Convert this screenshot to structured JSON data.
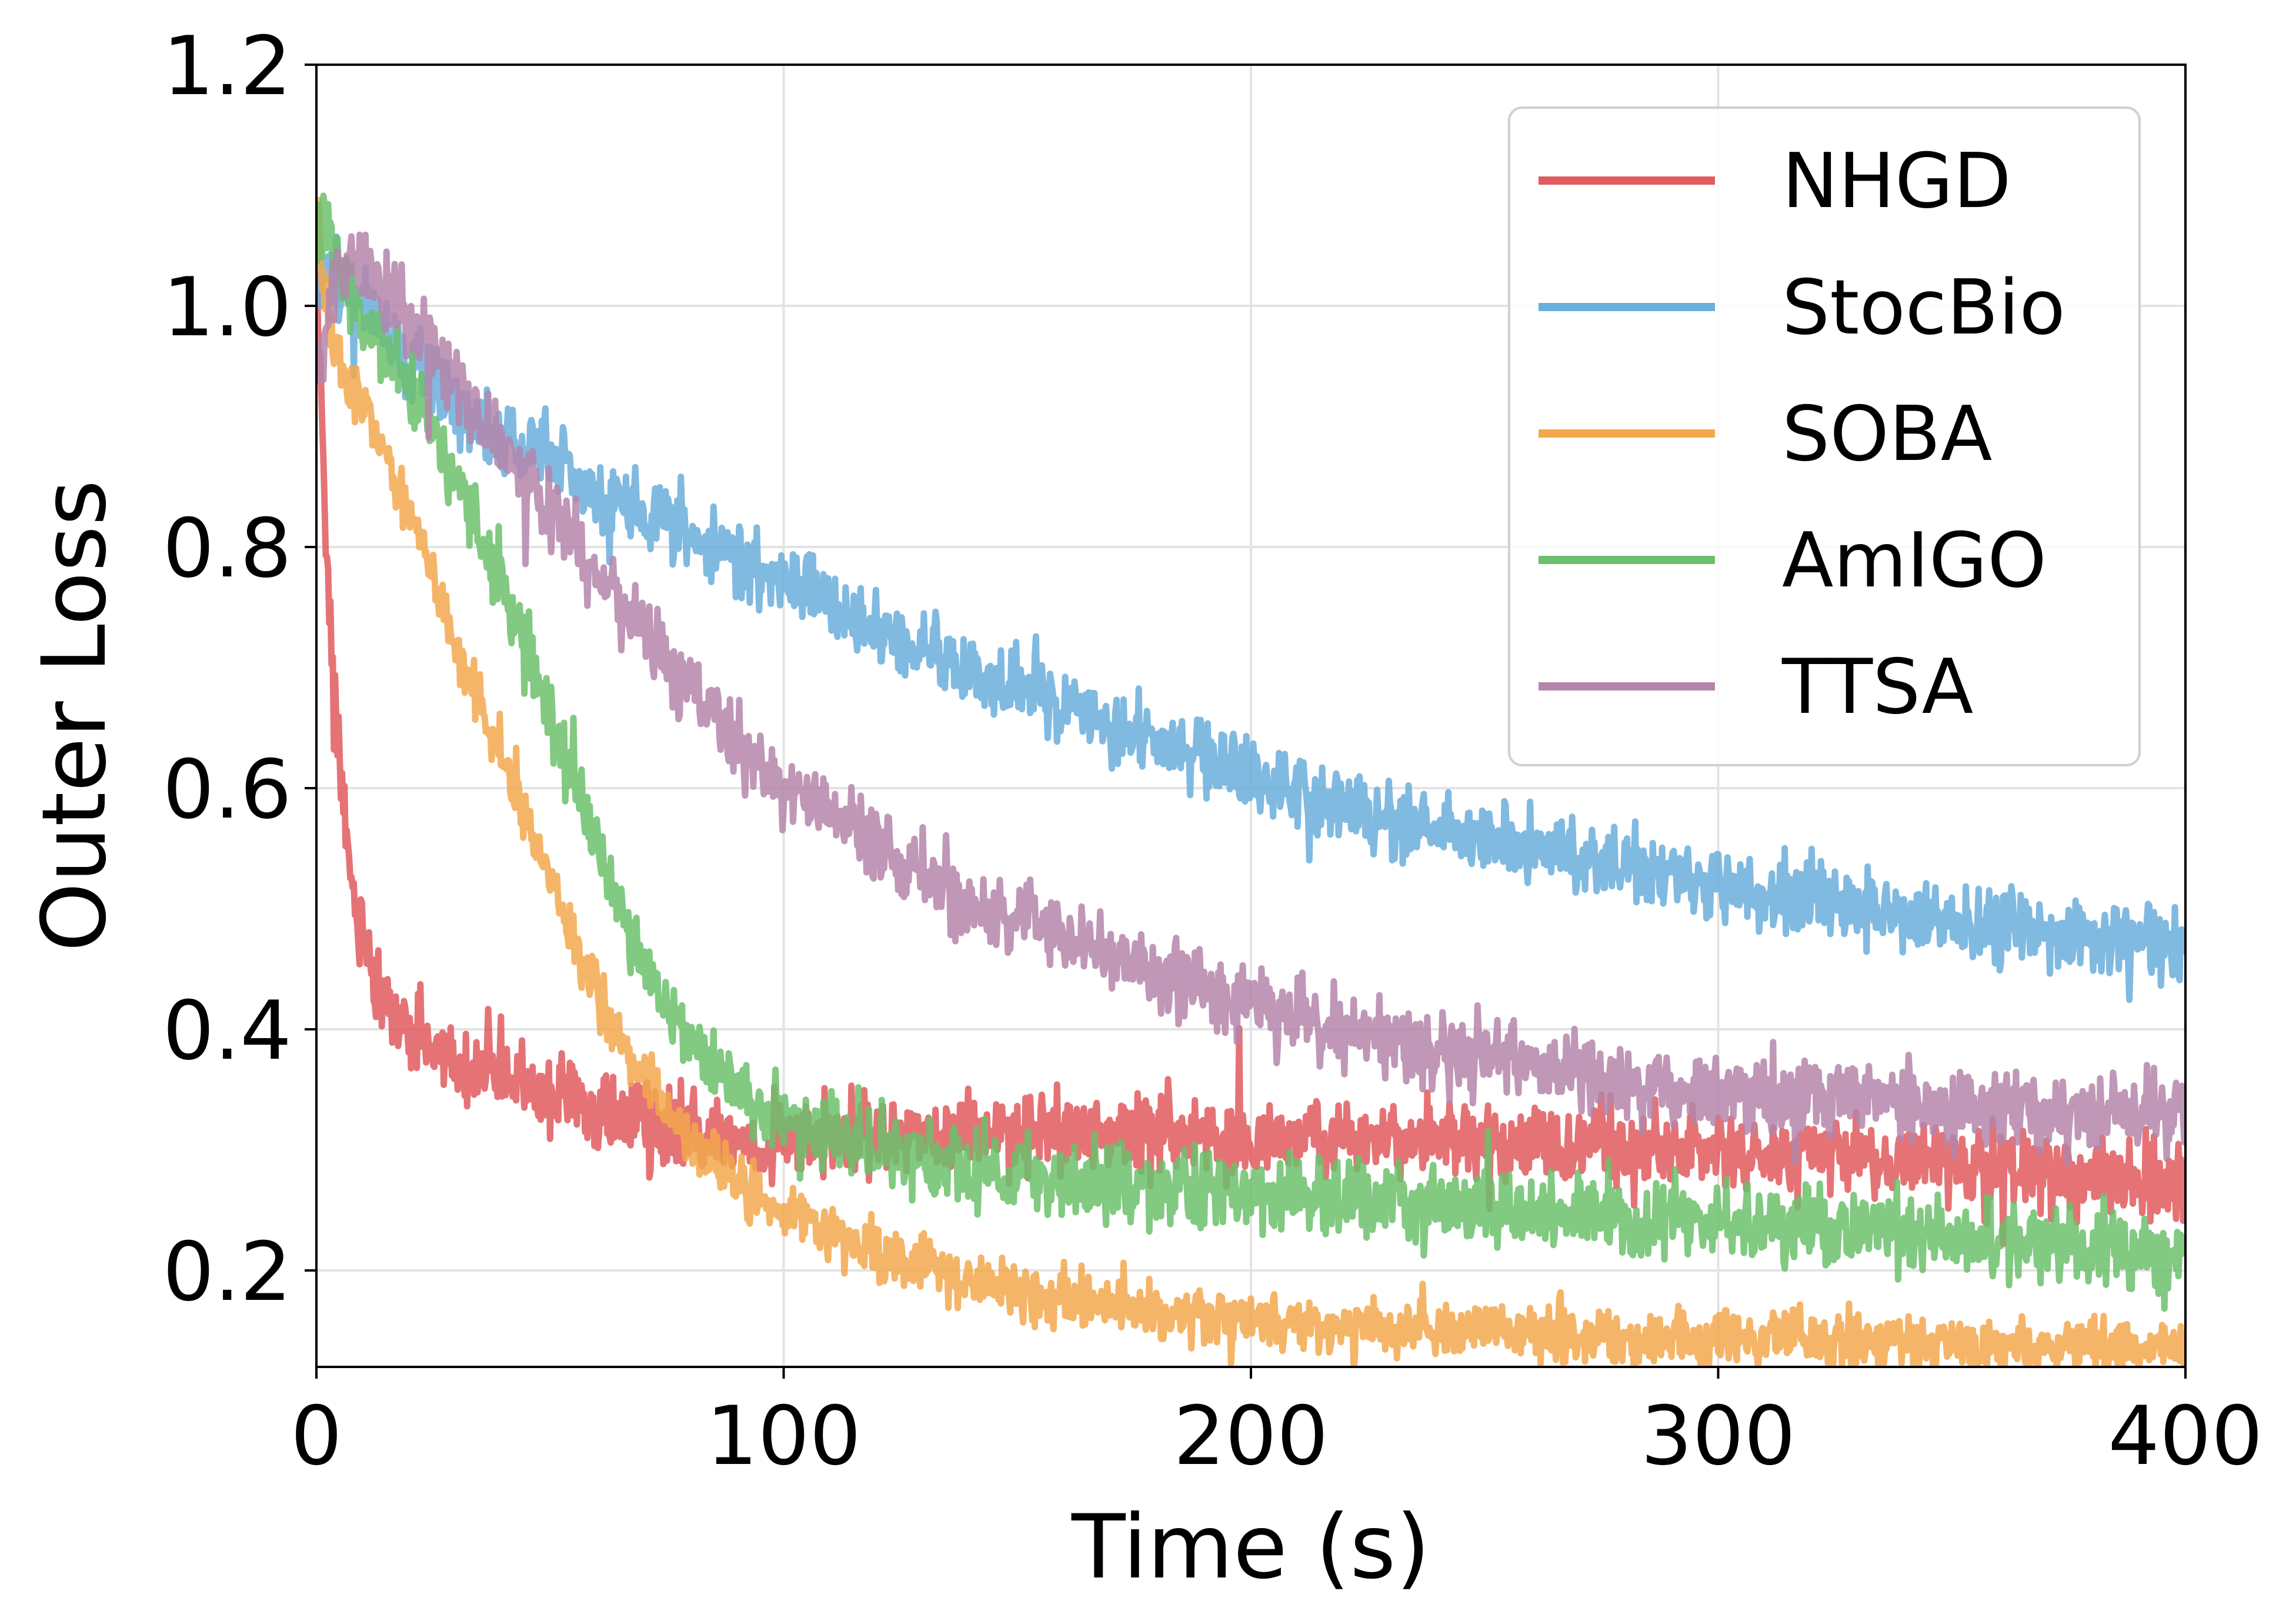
{
  "chart_data": {
    "type": "line",
    "title": "",
    "xlabel": "Time (s)",
    "ylabel": "Outer Loss",
    "xlim": [
      0,
      400
    ],
    "ylim": [
      0.12,
      1.2
    ],
    "xticks": [
      0,
      100,
      200,
      300,
      400
    ],
    "xtick_labels": [
      "0",
      "100",
      "200",
      "300",
      "400"
    ],
    "yticks": [
      0.2,
      0.4,
      0.6,
      0.8,
      1.0,
      1.2
    ],
    "ytick_labels": [
      "0.2",
      "0.4",
      "0.6",
      "0.8",
      "1.0",
      "1.2"
    ],
    "grid": true,
    "legend_position": "top-right",
    "series": [
      {
        "name": "NHGD",
        "color": "#e05a5e",
        "noise": 0.022,
        "x": [
          0,
          1,
          2,
          3,
          4,
          6,
          8,
          10,
          12,
          15,
          20,
          25,
          30,
          40,
          50,
          60,
          70,
          80,
          90,
          100,
          120,
          140,
          160,
          180,
          200,
          220,
          240,
          260,
          280,
          300,
          320,
          340,
          360,
          380,
          400
        ],
        "y": [
          1.02,
          0.92,
          0.82,
          0.73,
          0.66,
          0.57,
          0.51,
          0.47,
          0.44,
          0.42,
          0.4,
          0.385,
          0.375,
          0.36,
          0.35,
          0.335,
          0.32,
          0.31,
          0.305,
          0.31,
          0.31,
          0.315,
          0.315,
          0.315,
          0.31,
          0.31,
          0.305,
          0.305,
          0.3,
          0.3,
          0.295,
          0.29,
          0.285,
          0.28,
          0.27
        ]
      },
      {
        "name": "StocBio",
        "color": "#6aaedc",
        "noise": 0.022,
        "x": [
          0,
          2,
          5,
          10,
          20,
          30,
          40,
          50,
          60,
          80,
          100,
          120,
          140,
          160,
          180,
          200,
          220,
          240,
          260,
          280,
          300,
          320,
          340,
          360,
          380,
          400
        ],
        "y": [
          1.02,
          1.03,
          1.02,
          1.0,
          0.95,
          0.92,
          0.89,
          0.87,
          0.85,
          0.81,
          0.77,
          0.73,
          0.7,
          0.67,
          0.64,
          0.61,
          0.585,
          0.565,
          0.55,
          0.535,
          0.52,
          0.505,
          0.495,
          0.485,
          0.475,
          0.465
        ]
      },
      {
        "name": "SOBA",
        "color": "#f3a84e",
        "noise": 0.016,
        "x": [
          0,
          1,
          3,
          5,
          10,
          20,
          30,
          40,
          50,
          60,
          70,
          80,
          90,
          100,
          120,
          140,
          160,
          180,
          200,
          220,
          240,
          260,
          280,
          300,
          320,
          340,
          360,
          380,
          400
        ],
        "y": [
          1.1,
          1.05,
          0.98,
          0.95,
          0.92,
          0.83,
          0.72,
          0.62,
          0.52,
          0.43,
          0.36,
          0.31,
          0.275,
          0.25,
          0.215,
          0.19,
          0.175,
          0.165,
          0.16,
          0.155,
          0.15,
          0.148,
          0.145,
          0.143,
          0.141,
          0.139,
          0.137,
          0.136,
          0.135
        ]
      },
      {
        "name": "AmIGO",
        "color": "#6cbf6c",
        "noise": 0.022,
        "x": [
          0,
          2,
          5,
          10,
          20,
          30,
          40,
          50,
          60,
          70,
          80,
          90,
          100,
          120,
          140,
          160,
          180,
          200,
          220,
          240,
          260,
          280,
          300,
          320,
          340,
          360,
          380,
          400
        ],
        "y": [
          1.05,
          1.07,
          1.03,
          0.99,
          0.93,
          0.86,
          0.77,
          0.66,
          0.55,
          0.45,
          0.39,
          0.35,
          0.325,
          0.3,
          0.285,
          0.275,
          0.27,
          0.265,
          0.26,
          0.255,
          0.25,
          0.245,
          0.24,
          0.235,
          0.23,
          0.225,
          0.22,
          0.215
        ]
      },
      {
        "name": "TTSA",
        "color": "#b585aa",
        "noise": 0.022,
        "x": [
          0,
          3,
          6,
          10,
          15,
          20,
          30,
          40,
          50,
          60,
          70,
          80,
          90,
          100,
          120,
          140,
          160,
          180,
          200,
          220,
          240,
          260,
          280,
          300,
          320,
          340,
          360,
          380,
          400
        ],
        "y": [
          0.95,
          1.0,
          1.04,
          1.03,
          1.01,
          0.99,
          0.94,
          0.88,
          0.83,
          0.78,
          0.73,
          0.68,
          0.64,
          0.6,
          0.55,
          0.51,
          0.475,
          0.445,
          0.42,
          0.4,
          0.385,
          0.37,
          0.36,
          0.35,
          0.345,
          0.34,
          0.335,
          0.33,
          0.33
        ]
      }
    ]
  }
}
